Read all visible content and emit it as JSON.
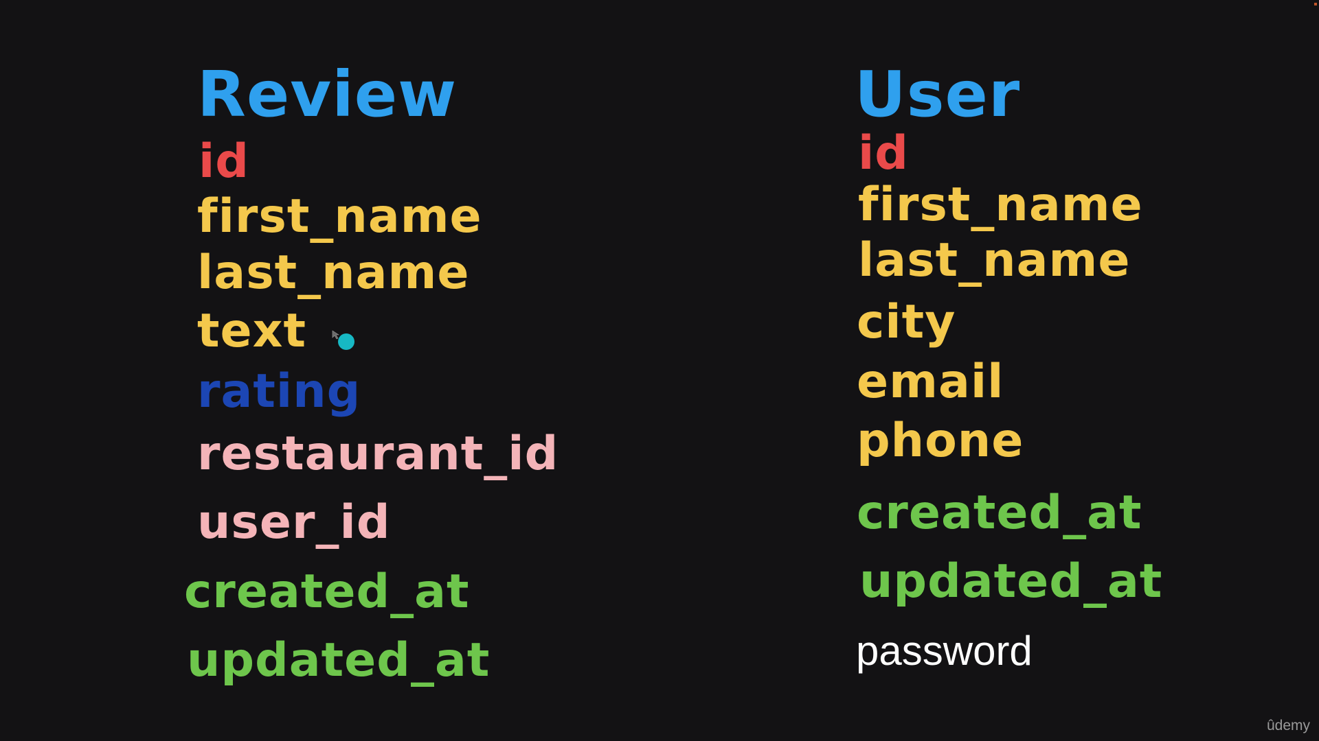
{
  "review": {
    "title": "Review",
    "title_color": "#2fa0ee",
    "fields": [
      {
        "label": "id",
        "color": "#ea4a4a"
      },
      {
        "label": "first_name",
        "color": "#f4c84c"
      },
      {
        "label": "last_name",
        "color": "#f4c84c"
      },
      {
        "label": "text",
        "color": "#f4c84c"
      },
      {
        "label": "rating",
        "color": "#1c46b4"
      },
      {
        "label": "restaurant_id",
        "color": "#f4b4b8"
      },
      {
        "label": "user_id",
        "color": "#f4b4b8"
      },
      {
        "label": "created_at",
        "color": "#6ec64c"
      },
      {
        "label": "updated_at",
        "color": "#6ec64c"
      }
    ]
  },
  "user": {
    "title": "User",
    "title_color": "#2fa0ee",
    "fields": [
      {
        "label": "id",
        "color": "#ea4a4a"
      },
      {
        "label": "first_name",
        "color": "#f4c84c"
      },
      {
        "label": "last_name",
        "color": "#f4c84c"
      },
      {
        "label": "city",
        "color": "#f4c84c"
      },
      {
        "label": "email",
        "color": "#f4c84c"
      },
      {
        "label": "phone",
        "color": "#f4c84c"
      },
      {
        "label": "created_at",
        "color": "#6ec64c"
      },
      {
        "label": "updated_at",
        "color": "#6ec64c"
      },
      {
        "label": "password",
        "color": "#ffffff"
      }
    ]
  },
  "watermark": "ûdemy",
  "cursor": {
    "color": "#17b8c4",
    "icon": "mouse-pointer-icon"
  }
}
